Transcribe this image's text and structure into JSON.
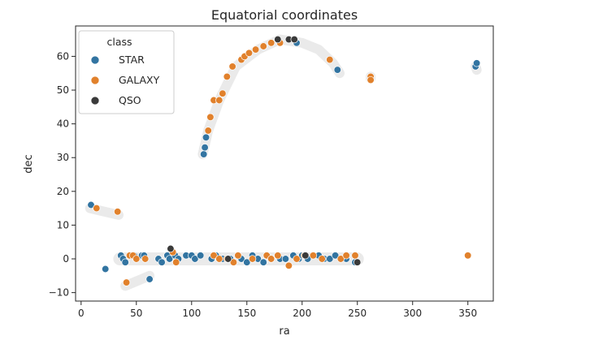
{
  "chart_data": {
    "type": "scatter",
    "title": "Equatorial coordinates",
    "xlabel": "ra",
    "ylabel": "dec",
    "xlim": [
      -5,
      373
    ],
    "ylim": [
      -12.5,
      69
    ],
    "xticks": [
      0,
      50,
      100,
      150,
      200,
      250,
      300,
      350
    ],
    "yticks": [
      -10,
      0,
      10,
      20,
      30,
      40,
      50,
      60
    ],
    "grid": false,
    "legend": {
      "title": "class",
      "placement": "top-left"
    },
    "series": [
      {
        "name": "STAR",
        "color": "#3274a1",
        "points": [
          [
            9,
            16
          ],
          [
            22,
            -3
          ],
          [
            36,
            1
          ],
          [
            38,
            0
          ],
          [
            40,
            -1
          ],
          [
            48,
            1
          ],
          [
            55,
            1
          ],
          [
            57,
            1
          ],
          [
            62,
            -6
          ],
          [
            70,
            0
          ],
          [
            73,
            -1
          ],
          [
            78,
            1
          ],
          [
            80,
            0
          ],
          [
            85,
            1
          ],
          [
            88,
            0
          ],
          [
            95,
            1
          ],
          [
            100,
            1
          ],
          [
            103,
            0
          ],
          [
            108,
            1
          ],
          [
            111,
            31
          ],
          [
            112,
            33
          ],
          [
            113,
            36
          ],
          [
            118,
            0
          ],
          [
            122,
            1
          ],
          [
            128,
            0
          ],
          [
            135,
            0
          ],
          [
            145,
            0
          ],
          [
            150,
            -1
          ],
          [
            155,
            1
          ],
          [
            160,
            0
          ],
          [
            165,
            -1
          ],
          [
            172,
            0
          ],
          [
            180,
            0
          ],
          [
            185,
            0
          ],
          [
            192,
            1
          ],
          [
            195,
            64
          ],
          [
            197,
            0
          ],
          [
            200,
            1
          ],
          [
            205,
            0
          ],
          [
            215,
            1
          ],
          [
            220,
            0
          ],
          [
            225,
            0
          ],
          [
            230,
            1
          ],
          [
            232,
            56
          ],
          [
            240,
            0
          ],
          [
            248,
            -1
          ],
          [
            357,
            57
          ],
          [
            358,
            58
          ]
        ]
      },
      {
        "name": "GALAXY",
        "color": "#e1812c",
        "points": [
          [
            14,
            15
          ],
          [
            33,
            14
          ],
          [
            41,
            -7
          ],
          [
            44,
            1
          ],
          [
            47,
            1
          ],
          [
            50,
            0
          ],
          [
            58,
            0
          ],
          [
            83,
            2
          ],
          [
            86,
            -1
          ],
          [
            115,
            38
          ],
          [
            117,
            42
          ],
          [
            120,
            47
          ],
          [
            125,
            47
          ],
          [
            128,
            49
          ],
          [
            132,
            54
          ],
          [
            137,
            57
          ],
          [
            145,
            59
          ],
          [
            148,
            60
          ],
          [
            152,
            61
          ],
          [
            158,
            62
          ],
          [
            165,
            63
          ],
          [
            172,
            64
          ],
          [
            180,
            64
          ],
          [
            120,
            1
          ],
          [
            125,
            0
          ],
          [
            132,
            0
          ],
          [
            138,
            -1
          ],
          [
            142,
            1
          ],
          [
            155,
            0
          ],
          [
            168,
            1
          ],
          [
            172,
            0
          ],
          [
            178,
            1
          ],
          [
            188,
            -2
          ],
          [
            195,
            0
          ],
          [
            202,
            1
          ],
          [
            210,
            1
          ],
          [
            218,
            0
          ],
          [
            225,
            59
          ],
          [
            235,
            0
          ],
          [
            240,
            1
          ],
          [
            248,
            1
          ],
          [
            262,
            54
          ],
          [
            262,
            53
          ],
          [
            350,
            1
          ]
        ]
      },
      {
        "name": "QSO",
        "color": "#3a3a3a",
        "points": [
          [
            81,
            3
          ],
          [
            178,
            65
          ],
          [
            188,
            65
          ],
          [
            193,
            65
          ],
          [
            250,
            -1
          ],
          [
            133,
            0
          ],
          [
            203,
            1
          ]
        ]
      }
    ]
  }
}
